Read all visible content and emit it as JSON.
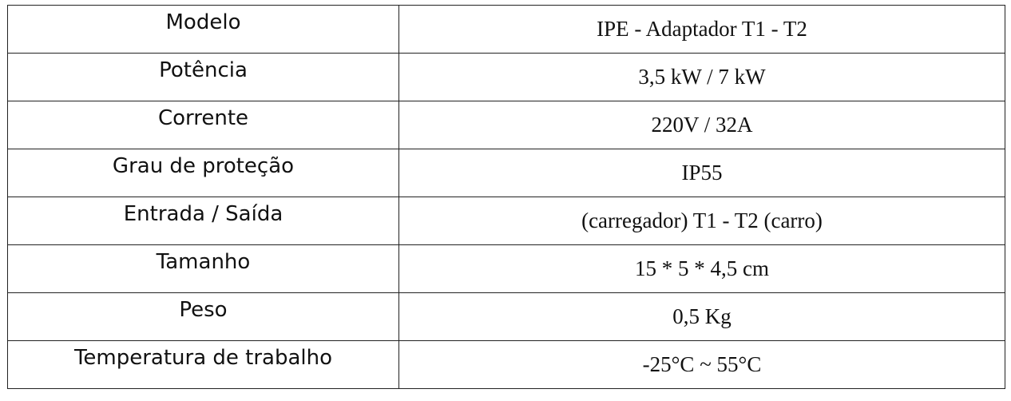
{
  "table": {
    "rows": [
      [
        "Modelo",
        "IPE - Adaptador T1 - T2"
      ],
      [
        "Potência",
        "3,5 kW / 7 kW"
      ],
      [
        "Corrente",
        "220V / 32A"
      ],
      [
        "Grau de proteção",
        "IP55"
      ],
      [
        "Entrada / Saída",
        "(carregador) T1 - T2 (carro)"
      ],
      [
        "Tamanho",
        "15 * 5 * 4,5 cm"
      ],
      [
        "Peso",
        "0,5 Kg"
      ],
      [
        "Temperatura de trabalho",
        "-25°C ~ 55°C"
      ]
    ]
  }
}
